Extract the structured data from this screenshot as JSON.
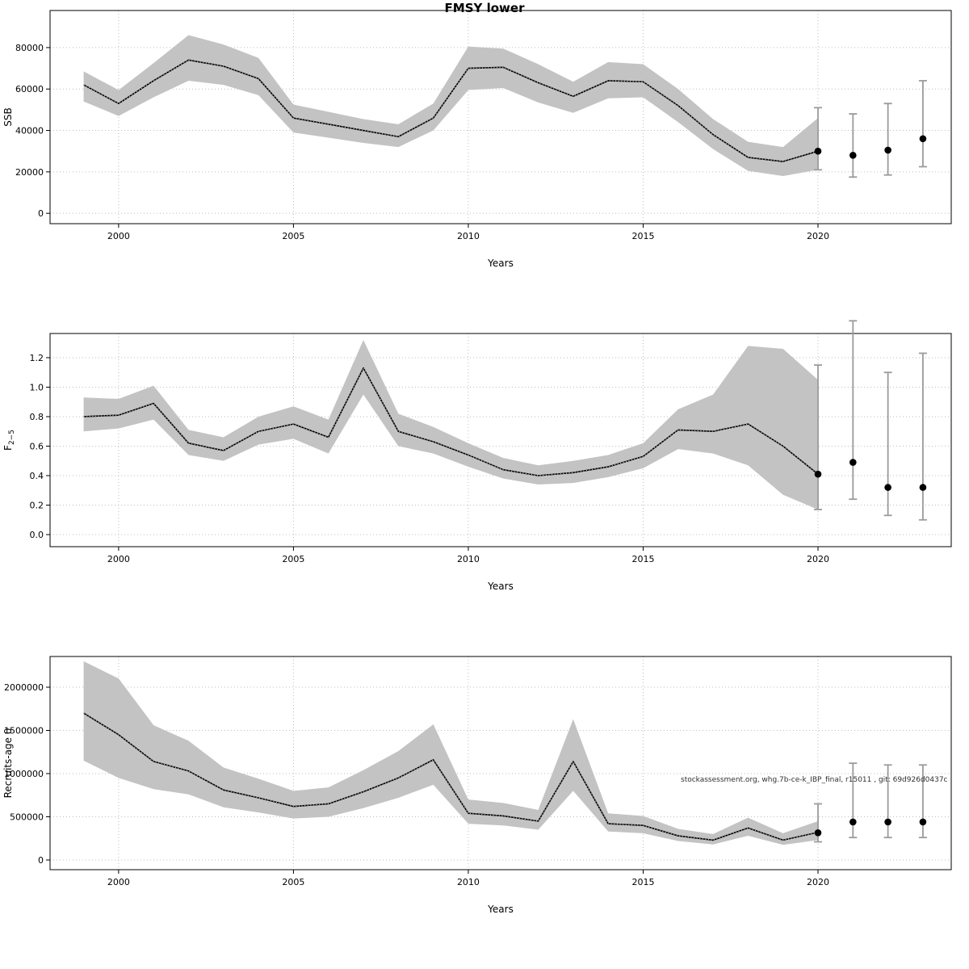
{
  "page": {
    "title": "FMSY lower"
  },
  "chart_data": [
    {
      "name": "ssb",
      "type": "line",
      "title": "",
      "xlabel": "Years",
      "ylabel": "SSB",
      "ylabel_sub": "",
      "x": [
        1999,
        2000,
        2001,
        2002,
        2003,
        2004,
        2005,
        2006,
        2007,
        2008,
        2009,
        2010,
        2011,
        2012,
        2013,
        2014,
        2015,
        2016,
        2017,
        2018,
        2019,
        2020
      ],
      "series": [
        {
          "name": "estimate",
          "values": [
            62000,
            53000,
            64000,
            74000,
            71000,
            65000,
            46000,
            43000,
            40000,
            37000,
            46000,
            70000,
            70500,
            63000,
            56500,
            64000,
            63500,
            52000,
            38000,
            27000,
            25000,
            30000
          ]
        }
      ],
      "band": {
        "lower": [
          54000,
          47000,
          56000,
          64000,
          62000,
          57000,
          39000,
          36500,
          34000,
          32000,
          40000,
          59500,
          60500,
          53500,
          48500,
          55500,
          56000,
          44000,
          31000,
          20500,
          18000,
          21000
        ],
        "upper": [
          68500,
          59500,
          72500,
          86000,
          81500,
          75000,
          52500,
          49000,
          45500,
          43000,
          53000,
          80500,
          79500,
          72000,
          63500,
          73000,
          72000,
          60000,
          45500,
          34500,
          32000,
          46000
        ]
      },
      "forecast": {
        "x": [
          2020,
          2021,
          2022,
          2023
        ],
        "y": [
          30000,
          28000,
          30500,
          36000
        ],
        "lo": [
          21000,
          17500,
          18500,
          22500
        ],
        "hi": [
          51000,
          48000,
          53000,
          64000
        ]
      },
      "xlim": [
        1998.04,
        2023.81
      ],
      "ylim": [
        -5000,
        97900
      ],
      "xticks": [
        2000,
        2005,
        2010,
        2015,
        2020
      ],
      "xtick_labels": [
        "2000",
        "2005",
        "2010",
        "2015",
        "2020"
      ],
      "yticks": [
        0,
        20000,
        40000,
        60000,
        80000
      ],
      "ytick_labels": [
        "0",
        "20000",
        "40000",
        "60000",
        "80000"
      ],
      "grid": true,
      "annotation": ""
    },
    {
      "name": "fishing-mortality",
      "type": "line",
      "title": "",
      "xlabel": "Years",
      "ylabel": "F",
      "ylabel_sub": "2−5",
      "x": [
        1999,
        2000,
        2001,
        2002,
        2003,
        2004,
        2005,
        2006,
        2007,
        2008,
        2009,
        2010,
        2011,
        2012,
        2013,
        2014,
        2015,
        2016,
        2017,
        2018,
        2019,
        2020
      ],
      "series": [
        {
          "name": "estimate",
          "values": [
            0.8,
            0.81,
            0.89,
            0.62,
            0.57,
            0.7,
            0.75,
            0.66,
            1.13,
            0.7,
            0.63,
            0.54,
            0.44,
            0.4,
            0.42,
            0.46,
            0.53,
            0.71,
            0.7,
            0.75,
            0.6,
            0.41
          ]
        }
      ],
      "band": {
        "lower": [
          0.7,
          0.72,
          0.78,
          0.54,
          0.5,
          0.61,
          0.65,
          0.55,
          0.95,
          0.6,
          0.55,
          0.46,
          0.38,
          0.34,
          0.35,
          0.39,
          0.45,
          0.58,
          0.55,
          0.47,
          0.27,
          0.17
        ],
        "upper": [
          0.93,
          0.92,
          1.01,
          0.71,
          0.66,
          0.8,
          0.87,
          0.78,
          1.32,
          0.82,
          0.73,
          0.62,
          0.52,
          0.47,
          0.5,
          0.54,
          0.62,
          0.85,
          0.95,
          1.28,
          1.26,
          1.05
        ]
      },
      "forecast": {
        "x": [
          2020,
          2021,
          2022,
          2023
        ],
        "y": [
          0.41,
          0.49,
          0.32,
          0.32
        ],
        "lo": [
          0.17,
          0.24,
          0.13,
          0.1
        ],
        "hi": [
          1.15,
          1.45,
          1.1,
          1.23
        ]
      },
      "xlim": [
        1998.04,
        2023.81
      ],
      "ylim": [
        -0.082,
        1.364
      ],
      "xticks": [
        2000,
        2005,
        2010,
        2015,
        2020
      ],
      "xtick_labels": [
        "2000",
        "2005",
        "2010",
        "2015",
        "2020"
      ],
      "yticks": [
        0.0,
        0.2,
        0.4,
        0.6,
        0.8,
        1.0,
        1.2
      ],
      "ytick_labels": [
        "0.0",
        "0.2",
        "0.4",
        "0.6",
        "0.8",
        "1.0",
        "1.2"
      ],
      "grid": true,
      "annotation": ""
    },
    {
      "name": "recruitment",
      "type": "line",
      "title": "",
      "xlabel": "Years",
      "ylabel": "Recruits-age 0",
      "ylabel_sub": "",
      "x": [
        1999,
        2000,
        2001,
        2002,
        2003,
        2004,
        2005,
        2006,
        2007,
        2008,
        2009,
        2010,
        2011,
        2012,
        2013,
        2014,
        2015,
        2016,
        2017,
        2018,
        2019,
        2020
      ],
      "series": [
        {
          "name": "estimate",
          "values": [
            1700000,
            1450000,
            1140000,
            1030000,
            810000,
            720000,
            620000,
            650000,
            790000,
            950000,
            1160000,
            540000,
            510000,
            450000,
            1140000,
            420000,
            400000,
            280000,
            230000,
            370000,
            230000,
            320000
          ]
        }
      ],
      "band": {
        "lower": [
          1150000,
          950000,
          820000,
          760000,
          610000,
          550000,
          480000,
          500000,
          600000,
          720000,
          870000,
          420000,
          400000,
          350000,
          800000,
          330000,
          310000,
          220000,
          180000,
          280000,
          175000,
          230000
        ],
        "upper": [
          2300000,
          2100000,
          1560000,
          1380000,
          1070000,
          940000,
          800000,
          840000,
          1040000,
          1260000,
          1570000,
          700000,
          660000,
          580000,
          1630000,
          540000,
          510000,
          360000,
          300000,
          490000,
          310000,
          450000
        ]
      },
      "forecast": {
        "x": [
          2020,
          2021,
          2022,
          2023
        ],
        "y": [
          315000,
          440000,
          440000,
          440000
        ],
        "lo": [
          210000,
          260000,
          260000,
          260000
        ],
        "hi": [
          650000,
          1120000,
          1100000,
          1100000
        ]
      },
      "xlim": [
        1998.04,
        2023.81
      ],
      "ylim": [
        -112000,
        2355000
      ],
      "xticks": [
        2000,
        2005,
        2010,
        2015,
        2020
      ],
      "xtick_labels": [
        "2000",
        "2005",
        "2010",
        "2015",
        "2020"
      ],
      "yticks": [
        0,
        500000,
        1000000,
        1500000,
        2000000
      ],
      "ytick_labels": [
        "0",
        "500000",
        "1000000",
        "1500000",
        "2000000"
      ],
      "grid": true,
      "annotation": "stockassessment.org, whg.7b-ce-k_IBP_final, r15011 , git: 69d926d0437c"
    }
  ]
}
